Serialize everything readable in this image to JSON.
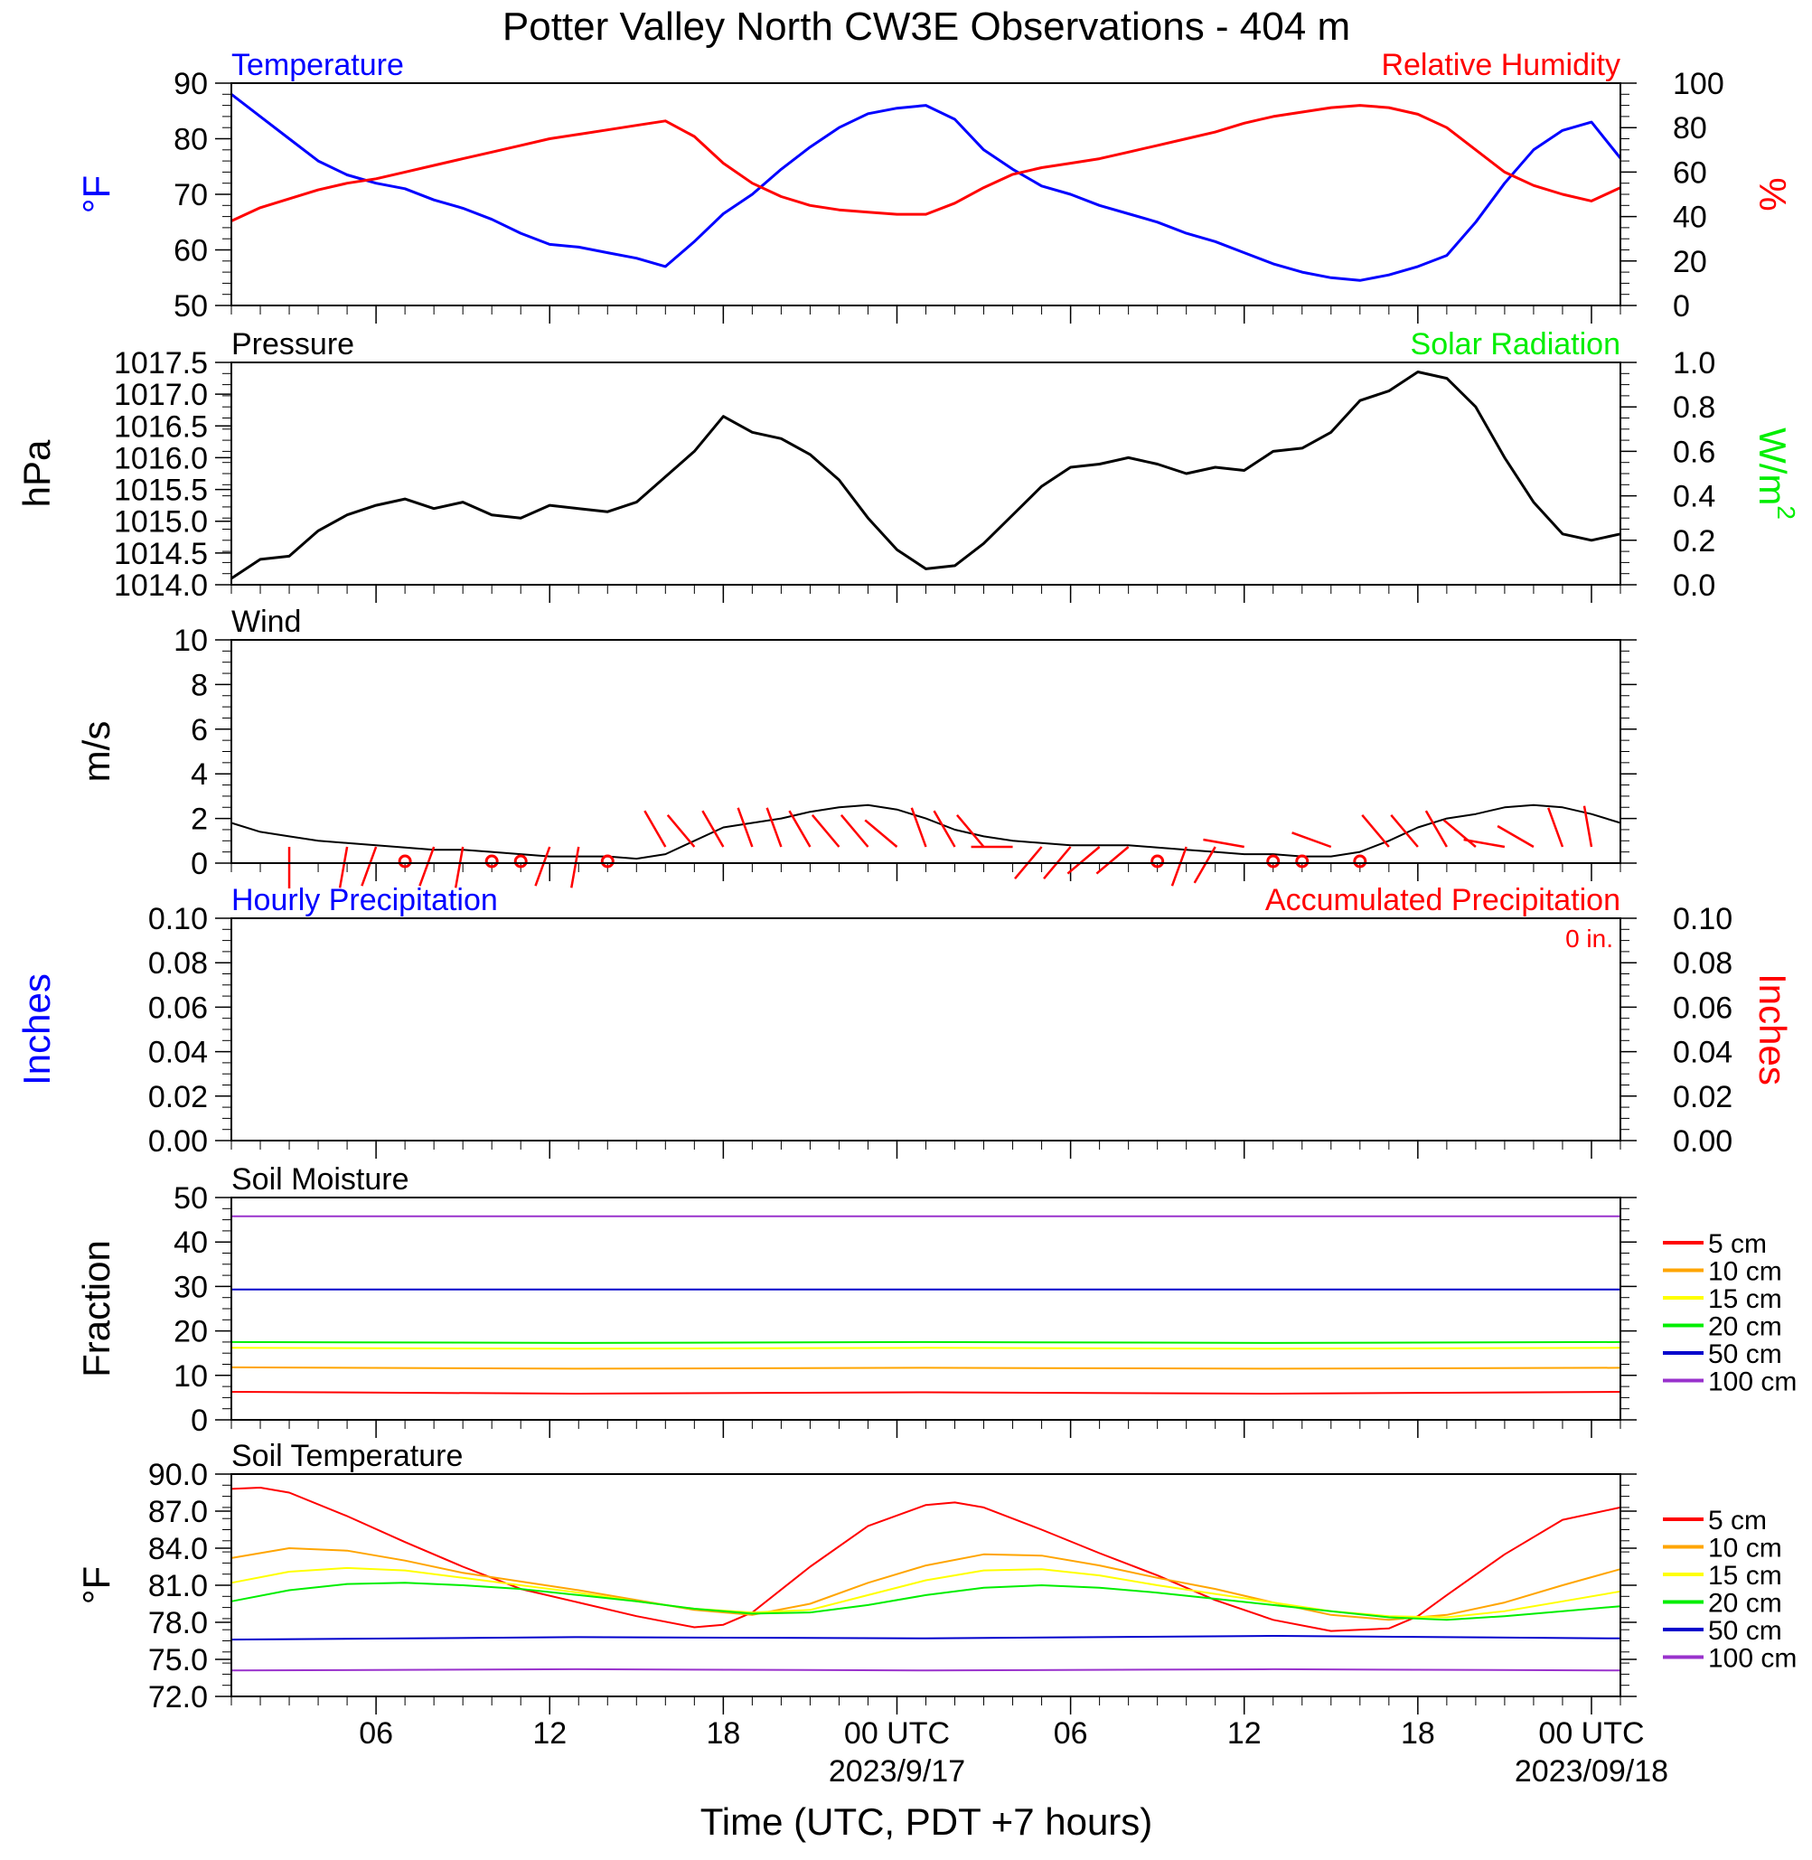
{
  "title": "Potter Valley North CW3E Observations - 404 m",
  "xlabel": "Time (UTC, PDT +7 hours)",
  "colors": {
    "blue": "#0000ff",
    "red": "#ff0000",
    "green": "#00ee00",
    "black": "#000000",
    "orange": "#ffa500",
    "yellow": "#ffff00",
    "darkblue": "#0000cc",
    "purple": "#9932cc"
  },
  "x_axis": {
    "range_hours": [
      0,
      48
    ],
    "ticks": [
      {
        "hour": 5,
        "label": "06",
        "date": ""
      },
      {
        "hour": 11,
        "label": "12",
        "date": ""
      },
      {
        "hour": 17,
        "label": "18",
        "date": ""
      },
      {
        "hour": 23,
        "label": "00 UTC",
        "date": "2023/9/17"
      },
      {
        "hour": 29,
        "label": "06",
        "date": ""
      },
      {
        "hour": 35,
        "label": "12",
        "date": ""
      },
      {
        "hour": 41,
        "label": "18",
        "date": ""
      },
      {
        "hour": 47,
        "label": "00 UTC",
        "date": "2023/09/18"
      }
    ]
  },
  "chart_data": [
    {
      "type": "line",
      "title_left": "Temperature",
      "title_right": "Relative Humidity",
      "ylabel_left": "°F",
      "ylabel_right": "%",
      "ylim_left": [
        50,
        90
      ],
      "yticks_left": [
        "50",
        "60",
        "70",
        "80",
        "90"
      ],
      "ylim_right": [
        0,
        100
      ],
      "yticks_right": [
        "0",
        "20",
        "40",
        "60",
        "80",
        "100"
      ],
      "series": [
        {
          "name": "Temperature",
          "axis": "left",
          "color": "#0000ff",
          "x": [
            0,
            1,
            2,
            3,
            4,
            5,
            6,
            7,
            8,
            9,
            10,
            11,
            12,
            13,
            14,
            15,
            16,
            17,
            18,
            19,
            20,
            21,
            22,
            23,
            24,
            25,
            26,
            27,
            28,
            29,
            30,
            31,
            32,
            33,
            34,
            35,
            36,
            37,
            38,
            39,
            40,
            41,
            42,
            43,
            44,
            45,
            46,
            47,
            48
          ],
          "y": [
            88,
            84,
            80,
            76,
            73.5,
            72,
            71,
            69,
            67.5,
            65.5,
            63,
            61,
            60.5,
            59.5,
            58.5,
            57,
            61.5,
            66.5,
            70,
            74.5,
            78.5,
            82,
            84.5,
            85.5,
            86,
            83.5,
            78,
            74.5,
            71.5,
            70,
            68,
            66.5,
            65,
            63,
            61.5,
            59.5,
            57.5,
            56,
            55,
            54.5,
            55.5,
            57,
            59,
            65,
            72,
            78,
            81.5,
            83,
            76.5
          ]
        },
        {
          "name": "Relative Humidity",
          "axis": "right",
          "color": "#ff0000",
          "x": [
            0,
            1,
            2,
            3,
            4,
            5,
            6,
            7,
            8,
            9,
            10,
            11,
            12,
            13,
            14,
            15,
            16,
            17,
            18,
            19,
            20,
            21,
            22,
            23,
            24,
            25,
            26,
            27,
            28,
            29,
            30,
            31,
            32,
            33,
            34,
            35,
            36,
            37,
            38,
            39,
            40,
            41,
            42,
            43,
            44,
            45,
            46,
            47,
            48
          ],
          "y": [
            38,
            44,
            48,
            52,
            55,
            57,
            60,
            63,
            66,
            69,
            72,
            75,
            77,
            79,
            81,
            83,
            76,
            64,
            55,
            49,
            45,
            43,
            42,
            41,
            41,
            46,
            53,
            59,
            62,
            64,
            66,
            69,
            72,
            75,
            78,
            82,
            85,
            87,
            89,
            90,
            89,
            86,
            80,
            70,
            60,
            54,
            50,
            47,
            53
          ]
        }
      ]
    },
    {
      "type": "line",
      "title_left": "Pressure",
      "title_right": "Solar Radiation",
      "ylabel_left": "hPa",
      "ylabel_right": "W/m",
      "ylabel_right_sup": "2",
      "ylim_left": [
        1014.0,
        1017.5
      ],
      "yticks_left": [
        "1014.0",
        "1014.5",
        "1015.0",
        "1015.5",
        "1016.0",
        "1016.5",
        "1017.0",
        "1017.5"
      ],
      "ylim_right": [
        0.0,
        1.0
      ],
      "yticks_right": [
        "0.0",
        "0.2",
        "0.4",
        "0.6",
        "0.8",
        "1.0"
      ],
      "series": [
        {
          "name": "Pressure",
          "axis": "left",
          "color": "#000000",
          "x": [
            0,
            1,
            2,
            3,
            4,
            5,
            6,
            7,
            8,
            9,
            10,
            11,
            12,
            13,
            14,
            15,
            16,
            17,
            18,
            19,
            20,
            21,
            22,
            23,
            24,
            25,
            26,
            27,
            28,
            29,
            30,
            31,
            32,
            33,
            34,
            35,
            36,
            37,
            38,
            39,
            40,
            41,
            42,
            43,
            44,
            45,
            46,
            47,
            48
          ],
          "y": [
            1014.1,
            1014.4,
            1014.45,
            1014.85,
            1015.1,
            1015.25,
            1015.35,
            1015.2,
            1015.3,
            1015.1,
            1015.05,
            1015.25,
            1015.2,
            1015.15,
            1015.3,
            1015.7,
            1016.1,
            1016.65,
            1016.4,
            1016.3,
            1016.05,
            1015.65,
            1015.05,
            1014.55,
            1014.25,
            1014.3,
            1014.65,
            1015.1,
            1015.55,
            1015.85,
            1015.9,
            1016.0,
            1015.9,
            1015.75,
            1015.85,
            1015.8,
            1016.1,
            1016.15,
            1016.4,
            1016.9,
            1017.05,
            1017.35,
            1017.25,
            1016.8,
            1016.0,
            1015.3,
            1014.8,
            1014.7,
            1014.8
          ]
        }
      ]
    },
    {
      "type": "line",
      "title_left": "Wind",
      "ylabel_left": "m/s",
      "ylim_left": [
        0,
        10
      ],
      "yticks_left": [
        "0",
        "2",
        "4",
        "6",
        "8",
        "10"
      ],
      "series": [
        {
          "name": "Wind",
          "axis": "left",
          "color": "#000000",
          "x": [
            0,
            1,
            2,
            3,
            4,
            5,
            6,
            7,
            8,
            9,
            10,
            11,
            12,
            13,
            14,
            15,
            16,
            17,
            18,
            19,
            20,
            21,
            22,
            23,
            24,
            25,
            26,
            27,
            28,
            29,
            30,
            31,
            32,
            33,
            34,
            35,
            36,
            37,
            38,
            39,
            40,
            41,
            42,
            43,
            44,
            45,
            46,
            47,
            48
          ],
          "y": [
            1.8,
            1.4,
            1.2,
            1.0,
            0.9,
            0.8,
            0.7,
            0.6,
            0.6,
            0.5,
            0.4,
            0.3,
            0.3,
            0.3,
            0.2,
            0.4,
            1.0,
            1.6,
            1.8,
            2.0,
            2.3,
            2.5,
            2.6,
            2.4,
            2.0,
            1.5,
            1.2,
            1.0,
            0.9,
            0.8,
            0.8,
            0.8,
            0.7,
            0.6,
            0.5,
            0.4,
            0.4,
            0.3,
            0.3,
            0.5,
            1.0,
            1.6,
            2.0,
            2.2,
            2.5,
            2.6,
            2.5,
            2.2,
            1.8
          ]
        }
      ],
      "calm_hours": [
        6,
        9,
        10,
        13,
        32,
        36,
        37,
        39
      ],
      "barbs": {
        "color": "#ff0000",
        "hours": [
          2,
          4,
          5,
          7,
          8,
          11,
          12,
          15,
          16,
          17,
          18,
          19,
          20,
          21,
          22,
          23,
          24,
          25,
          26,
          27,
          28,
          29,
          30,
          31,
          33,
          34,
          35,
          38,
          40,
          41,
          42,
          43,
          44,
          45,
          46,
          47
        ],
        "dir_deg": [
          180,
          190,
          200,
          200,
          190,
          200,
          190,
          330,
          320,
          330,
          340,
          340,
          330,
          320,
          320,
          310,
          340,
          330,
          320,
          270,
          220,
          220,
          230,
          230,
          200,
          210,
          280,
          290,
          320,
          320,
          330,
          310,
          280,
          300,
          340,
          350
        ]
      }
    },
    {
      "type": "line",
      "title_left": "Hourly Precipitation",
      "title_right": "Accumulated Precipitation",
      "annotation": "0 in.",
      "ylabel_left": "Inches",
      "ylabel_right": "Inches",
      "ylim_left": [
        0,
        0.1
      ],
      "yticks_left": [
        "0.00",
        "0.02",
        "0.04",
        "0.06",
        "0.08",
        "0.10"
      ],
      "ylim_right": [
        0,
        0.1
      ],
      "yticks_right": [
        "0.00",
        "0.02",
        "0.04",
        "0.06",
        "0.08",
        "0.10"
      ],
      "series": [
        {
          "name": "Accumulated Precipitation",
          "axis": "left",
          "color": "#ff0000",
          "x": [
            0,
            48
          ],
          "y": [
            0,
            0
          ]
        }
      ]
    },
    {
      "type": "line",
      "title_left": "Soil Moisture",
      "ylabel_left": "Fraction",
      "ylim_left": [
        0,
        50
      ],
      "yticks_left": [
        "0",
        "10",
        "20",
        "30",
        "40",
        "50"
      ],
      "legend": "right",
      "series": [
        {
          "name": "5 cm",
          "axis": "left",
          "color": "#ff0000",
          "x": [
            0,
            12,
            24,
            36,
            48
          ],
          "y": [
            6.3,
            5.9,
            6.2,
            5.9,
            6.3
          ]
        },
        {
          "name": "10 cm",
          "axis": "left",
          "color": "#ffa500",
          "x": [
            0,
            12,
            24,
            36,
            48
          ],
          "y": [
            11.8,
            11.5,
            11.7,
            11.5,
            11.7
          ]
        },
        {
          "name": "15 cm",
          "axis": "left",
          "color": "#ffff00",
          "x": [
            0,
            12,
            24,
            36,
            48
          ],
          "y": [
            16.2,
            16.0,
            16.2,
            16.0,
            16.2
          ]
        },
        {
          "name": "20 cm",
          "axis": "left",
          "color": "#00ee00",
          "x": [
            0,
            12,
            24,
            36,
            48
          ],
          "y": [
            17.5,
            17.3,
            17.5,
            17.3,
            17.5
          ]
        },
        {
          "name": "50 cm",
          "axis": "left",
          "color": "#0000cc",
          "x": [
            0,
            48
          ],
          "y": [
            29.3,
            29.3
          ]
        },
        {
          "name": "100 cm",
          "axis": "left",
          "color": "#9932cc",
          "x": [
            0,
            48
          ],
          "y": [
            45.8,
            45.8
          ]
        }
      ]
    },
    {
      "type": "line",
      "title_left": "Soil Temperature",
      "ylabel_left": "°F",
      "ylim_left": [
        72,
        90
      ],
      "yticks_left": [
        "72.0",
        "75.0",
        "78.0",
        "81.0",
        "84.0",
        "87.0",
        "90.0"
      ],
      "legend": "right",
      "series": [
        {
          "name": "5 cm",
          "axis": "left",
          "color": "#ff0000",
          "x": [
            0,
            1,
            2,
            4,
            6,
            8,
            10,
            12,
            14,
            16,
            17,
            18,
            20,
            22,
            24,
            25,
            26,
            28,
            30,
            32,
            34,
            36,
            38,
            40,
            41,
            42,
            44,
            46,
            48
          ],
          "y": [
            88.8,
            88.9,
            88.5,
            86.6,
            84.5,
            82.5,
            80.7,
            79.6,
            78.5,
            77.6,
            77.8,
            78.8,
            82.5,
            85.8,
            87.5,
            87.7,
            87.3,
            85.5,
            83.6,
            81.8,
            79.8,
            78.2,
            77.3,
            77.5,
            78.5,
            80.2,
            83.5,
            86.3,
            87.3
          ]
        },
        {
          "name": "10 cm",
          "axis": "left",
          "color": "#ffa500",
          "x": [
            0,
            2,
            4,
            6,
            8,
            10,
            12,
            14,
            16,
            18,
            20,
            22,
            24,
            26,
            28,
            30,
            32,
            34,
            36,
            38,
            40,
            42,
            44,
            46,
            48
          ],
          "y": [
            83.2,
            84.0,
            83.8,
            83.0,
            82.0,
            81.3,
            80.6,
            79.8,
            79.0,
            78.6,
            79.5,
            81.2,
            82.6,
            83.5,
            83.4,
            82.6,
            81.6,
            80.7,
            79.6,
            78.6,
            78.2,
            78.6,
            79.6,
            81.0,
            82.3
          ]
        },
        {
          "name": "15 cm",
          "axis": "left",
          "color": "#ffff00",
          "x": [
            0,
            2,
            4,
            6,
            8,
            10,
            12,
            14,
            16,
            18,
            20,
            22,
            24,
            26,
            28,
            30,
            32,
            34,
            36,
            38,
            40,
            42,
            44,
            46,
            48
          ],
          "y": [
            81.2,
            82.1,
            82.4,
            82.2,
            81.6,
            81.0,
            80.4,
            79.7,
            79.1,
            78.8,
            79.0,
            80.2,
            81.4,
            82.2,
            82.3,
            81.8,
            81.0,
            80.3,
            79.6,
            78.9,
            78.5,
            78.4,
            78.9,
            79.7,
            80.5
          ]
        },
        {
          "name": "20 cm",
          "axis": "left",
          "color": "#00ee00",
          "x": [
            0,
            2,
            4,
            6,
            8,
            10,
            12,
            14,
            16,
            18,
            20,
            22,
            24,
            26,
            28,
            30,
            32,
            34,
            36,
            38,
            40,
            42,
            44,
            46,
            48
          ],
          "y": [
            79.7,
            80.6,
            81.1,
            81.2,
            81.0,
            80.7,
            80.2,
            79.7,
            79.1,
            78.7,
            78.8,
            79.4,
            80.2,
            80.8,
            81.0,
            80.8,
            80.4,
            79.9,
            79.4,
            78.9,
            78.4,
            78.2,
            78.5,
            78.9,
            79.3
          ]
        },
        {
          "name": "50 cm",
          "axis": "left",
          "color": "#0000cc",
          "x": [
            0,
            12,
            24,
            36,
            48
          ],
          "y": [
            76.6,
            76.8,
            76.7,
            76.9,
            76.7
          ]
        },
        {
          "name": "100 cm",
          "axis": "left",
          "color": "#9932cc",
          "x": [
            0,
            12,
            24,
            36,
            48
          ],
          "y": [
            74.1,
            74.2,
            74.1,
            74.2,
            74.1
          ]
        }
      ]
    }
  ]
}
